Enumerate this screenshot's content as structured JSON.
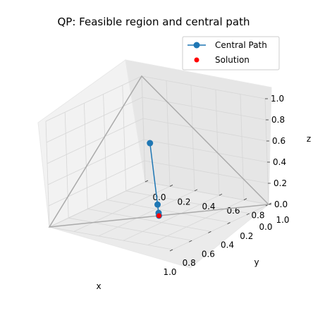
{
  "chart_data": {
    "type": "scatter",
    "title": "QP: Feasible region and central path",
    "xlabel": "x",
    "ylabel": "y",
    "zlabel": "z",
    "xlim": [
      0.0,
      1.0
    ],
    "ylim": [
      0.0,
      1.0
    ],
    "zlim": [
      0.0,
      1.0
    ],
    "ticks": {
      "x": [
        "0.0",
        "0.2",
        "0.4",
        "0.6",
        "0.8",
        "1.0"
      ],
      "y": [
        "0.0",
        "0.2",
        "0.4",
        "0.6",
        "0.8",
        "1.0"
      ],
      "z": [
        "0.0",
        "0.2",
        "0.4",
        "0.6",
        "0.8",
        "1.0"
      ]
    },
    "grid": true,
    "legend_position": "top-right",
    "feasible_region": {
      "vertices": [
        [
          1,
          0,
          0
        ],
        [
          0,
          1,
          0
        ],
        [
          0,
          0,
          1
        ]
      ],
      "color": "#aaaaaa"
    },
    "series": [
      {
        "name": "Central Path",
        "kind": "line-markers",
        "color": "#1f77b4",
        "points": [
          [
            0.24,
            0.24,
            0.52
          ],
          [
            0.46,
            0.46,
            0.08
          ],
          [
            0.49,
            0.49,
            0.02
          ],
          [
            0.5,
            0.5,
            0.0
          ]
        ]
      },
      {
        "name": "Solution",
        "kind": "scatter",
        "color": "#ff0000",
        "points": [
          [
            0.5,
            0.5,
            0.0
          ]
        ]
      }
    ]
  }
}
